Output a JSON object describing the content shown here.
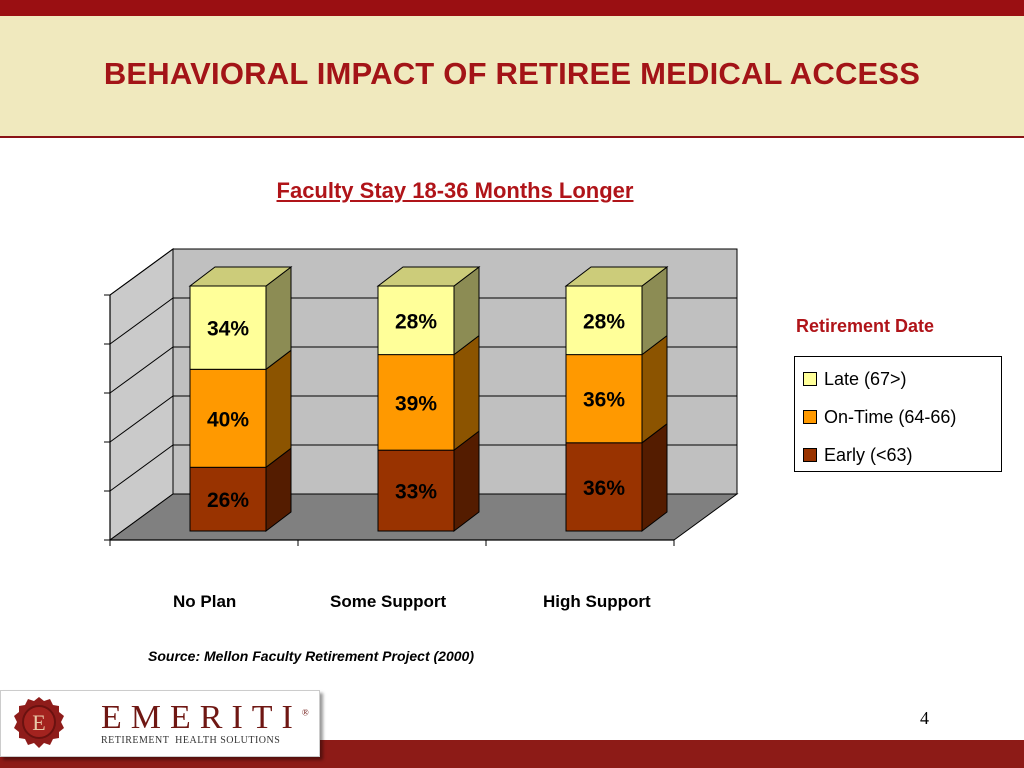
{
  "slide": {
    "title": "BEHAVIORAL IMPACT OF RETIREE MEDICAL ACCESS",
    "page_number": "4",
    "source": "Source: Mellon Faculty Retirement Project (2000)"
  },
  "logo": {
    "name": "EMERITI",
    "registered": "®",
    "tagline": "RETIREMENT  HEALTH SOLUTIONS",
    "seal_letter": "E"
  },
  "legend": {
    "title": "Retirement Date",
    "items": [
      "Late (67>)",
      "On-Time (64-66)",
      "Early (<63)"
    ]
  },
  "colors": {
    "late": "#ffff99",
    "on_time": "#ff9900",
    "early": "#993300",
    "wall": "#c0c0c0",
    "floor": "#808080",
    "brand": "#9a0f12"
  },
  "chart_data": {
    "type": "bar",
    "stacked": true,
    "three_d": true,
    "title": "Faculty Stay 18-36 Months Longer",
    "categories": [
      "No Plan",
      "Some Support",
      "High Support"
    ],
    "series": [
      {
        "name": "Early (<63)",
        "values": [
          26,
          33,
          36
        ],
        "labels": [
          "26%",
          "33%",
          "36%"
        ]
      },
      {
        "name": "On-Time (64-66)",
        "values": [
          40,
          39,
          36
        ],
        "labels": [
          "40%",
          "39%",
          "36%"
        ]
      },
      {
        "name": "Late (67>)",
        "values": [
          34,
          28,
          28
        ],
        "labels": [
          "34%",
          "28%",
          "28%"
        ]
      }
    ],
    "ylim": [
      0,
      100
    ],
    "grid": true,
    "legend_position": "right"
  }
}
